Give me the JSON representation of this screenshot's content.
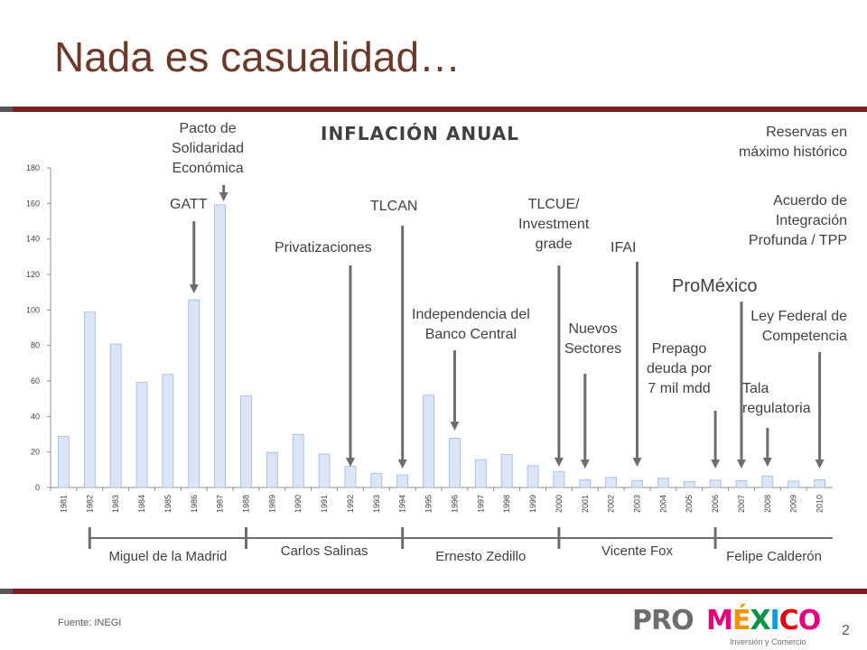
{
  "slide": {
    "title": "Nada es casualidad…",
    "source": "Fuente: INEGI",
    "page_number": "2"
  },
  "logo": {
    "text_pro": "PRO",
    "text_mexico": "MÉXICO",
    "tagline": "Inversión y Comercio",
    "colors": [
      "#e6007e",
      "#f39200",
      "#009640",
      "#00a0e1",
      "#e30613",
      "#6d6d6d"
    ]
  },
  "colors": {
    "accent_rule": "#7a1f1f",
    "title": "#6b3a2a",
    "bar_fill": "#dbe5f5",
    "bar_stroke": "#9db7dd",
    "arrow": "#6d6d6d"
  },
  "chart_data": {
    "type": "bar",
    "title": "INFLACIÓN ANUAL",
    "xlabel": "",
    "ylabel": "",
    "ylim": [
      0,
      180
    ],
    "yticks": [
      0,
      20,
      40,
      60,
      80,
      100,
      120,
      140,
      160,
      180
    ],
    "grid": false,
    "categories": [
      "1981",
      "1982",
      "1983",
      "1984",
      "1985",
      "1986",
      "1987",
      "1988",
      "1989",
      "1990",
      "1991",
      "1992",
      "1993",
      "1994",
      "1995",
      "1996",
      "1997",
      "1998",
      "1999",
      "2000",
      "2001",
      "2002",
      "2003",
      "2004",
      "2005",
      "2006",
      "2007",
      "2008",
      "2009",
      "2010"
    ],
    "values": [
      28.7,
      98.8,
      80.8,
      59.2,
      63.7,
      105.7,
      159.2,
      51.7,
      19.7,
      29.9,
      18.8,
      11.9,
      8.0,
      7.1,
      52.0,
      27.7,
      15.7,
      18.6,
      12.3,
      9.0,
      4.4,
      5.7,
      4.0,
      5.2,
      3.3,
      4.1,
      3.8,
      6.5,
      3.6,
      4.4
    ],
    "annotations": [
      {
        "lines": [
          "GATT"
        ],
        "year": "1986",
        "size": "normal"
      },
      {
        "lines": [
          "Pacto de",
          "Solidaridad",
          "Económica"
        ],
        "year": "1987",
        "size": "normal"
      },
      {
        "lines": [
          "Privatizaciones"
        ],
        "year": "1992",
        "size": "normal"
      },
      {
        "lines": [
          "TLCAN"
        ],
        "year": "1994",
        "size": "normal"
      },
      {
        "lines": [
          "Independencia del",
          "Banco Central"
        ],
        "year": "1996",
        "size": "normal"
      },
      {
        "lines": [
          "TLCUE/",
          "Investment",
          "grade"
        ],
        "year": "2000",
        "size": "normal"
      },
      {
        "lines": [
          "Nuevos",
          "Sectores"
        ],
        "year": "2001",
        "size": "normal"
      },
      {
        "lines": [
          "IFAI"
        ],
        "year": "2003",
        "size": "normal"
      },
      {
        "lines": [
          "Prepago",
          "deuda por",
          "7 mil mdd"
        ],
        "year": "2006",
        "size": "normal"
      },
      {
        "lines": [
          "ProMéxico"
        ],
        "year": "2007",
        "size": "big"
      },
      {
        "lines": [
          "Tala",
          "regulatoria"
        ],
        "year": "2008",
        "size": "normal"
      },
      {
        "lines": [
          "Ley Federal de",
          "Competencia"
        ],
        "year": "2010",
        "size": "normal"
      },
      {
        "lines": [
          "Reservas en",
          "máximo histórico"
        ],
        "year": "",
        "size": "normal"
      },
      {
        "lines": [
          "Acuerdo de",
          "Integración",
          "Profunda / TPP"
        ],
        "year": "",
        "size": "normal"
      }
    ],
    "presidents": [
      {
        "name": "Miguel de la Madrid",
        "from": "1982",
        "to": "1987"
      },
      {
        "name": "Carlos Salinas",
        "from": "1988",
        "to": "1993"
      },
      {
        "name": "Ernesto Zedillo",
        "from": "1994",
        "to": "1999"
      },
      {
        "name": "Vicente Fox",
        "from": "2000",
        "to": "2005"
      },
      {
        "name": "Felipe Calderón",
        "from": "2006",
        "to": "2010"
      }
    ]
  }
}
